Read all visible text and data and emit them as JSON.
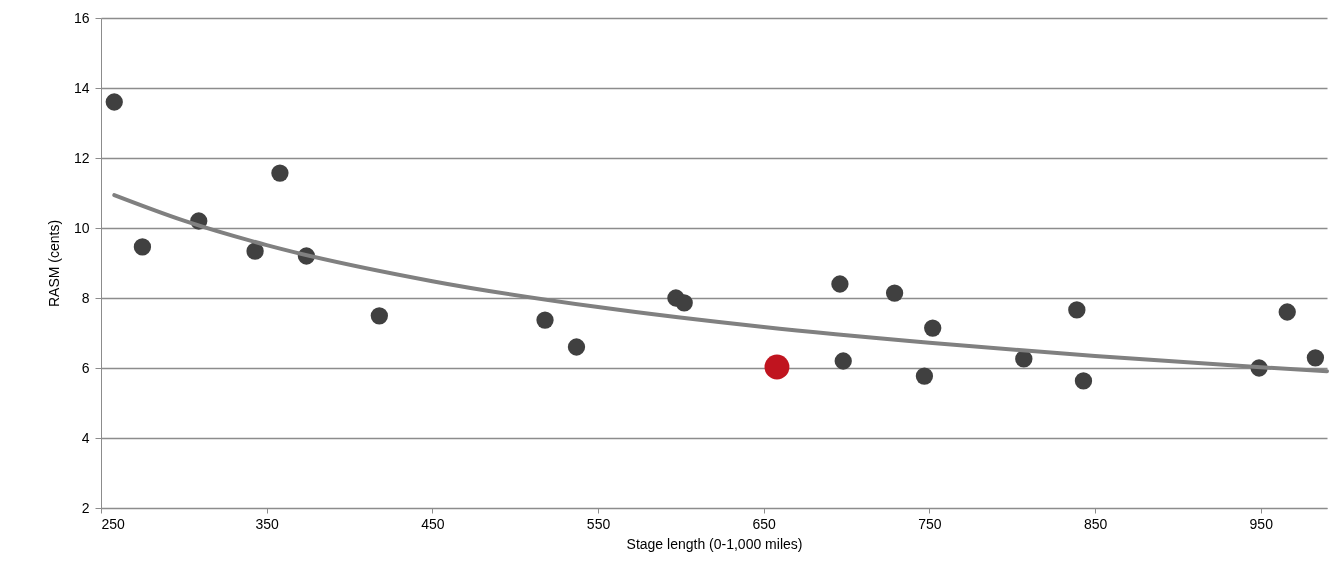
{
  "chart_data": {
    "type": "scatter",
    "xlabel": "Stage length (0-1,000 miles)",
    "ylabel": "RASM (cents)",
    "xlim": [
      250,
      990
    ],
    "xticks": [
      250,
      350,
      450,
      550,
      650,
      750,
      850,
      950
    ],
    "ylim": [
      2,
      16
    ],
    "yticks": [
      2,
      4,
      6,
      8,
      10,
      12,
      14,
      16
    ],
    "grid": "y",
    "series": [
      {
        "color": "#404040",
        "marker": "circle",
        "x": [
          258,
          275,
          309,
          343,
          358,
          374,
          418,
          518,
          537,
          597,
          602,
          696,
          698,
          729,
          747,
          752,
          807,
          839,
          843,
          949,
          966,
          983
        ],
        "values": [
          13.6,
          9.46,
          10.2,
          9.34,
          11.57,
          9.2,
          7.49,
          7.37,
          6.6,
          8.0,
          7.86,
          8.4,
          6.2,
          8.14,
          5.77,
          7.14,
          6.26,
          7.66,
          5.63,
          6.0,
          7.6,
          6.29
        ]
      },
      {
        "color": "#c0141f",
        "marker": "circle",
        "x": [
          658
        ],
        "values": [
          6.03
        ]
      },
      {
        "type": "line",
        "color": "#808080",
        "x": [
          258,
          300,
          350,
          450,
          550,
          650,
          750,
          850,
          950,
          990
        ],
        "values": [
          10.94,
          10.21,
          9.51,
          8.48,
          7.74,
          7.17,
          6.72,
          6.34,
          6.02,
          5.91
        ]
      }
    ]
  }
}
